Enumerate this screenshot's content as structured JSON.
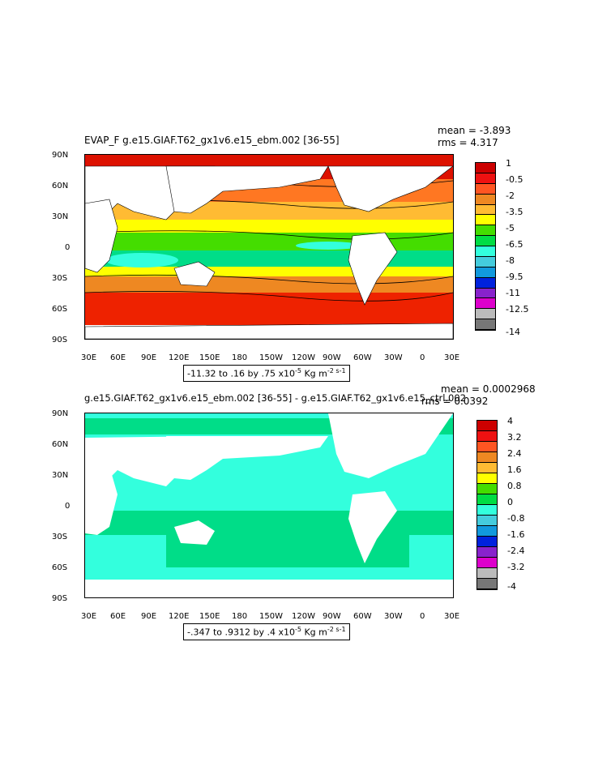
{
  "panel1": {
    "title": "EVAP_F g.e15.GIAF.T62_gx1v6.e15_ebm.002 [36-55]",
    "mean_label": "mean = -3.893",
    "rms_label": "rms = 4.317",
    "range_text": "-11.32 to .16 by .75 x10",
    "range_exp": "-5",
    "range_units": " Kg m",
    "range_units_exp": "-2 s-1",
    "colorbar": {
      "labels": [
        "1",
        "-0.5",
        "-2",
        "-3.5",
        "-5",
        "-6.5",
        "-8",
        "-9.5",
        "-11",
        "-12.5",
        "-14"
      ],
      "colors": [
        "#cc0000",
        "#ee1111",
        "#ff5522",
        "#ee8822",
        "#ffbb33",
        "#ffff00",
        "#44dd00",
        "#00dd44",
        "#33ffdd",
        "#44ccdd",
        "#1199dd",
        "#0022dd",
        "#8822cc",
        "#dd00cc",
        "#bbbbbb",
        "#777777"
      ]
    }
  },
  "panel2": {
    "title": "g.e15.GIAF.T62_gx1v6.e15_ebm.002 [36-55] - g.e15.GIAF.T62_gx1v6.e15_ctrl.002",
    "mean_label": "mean = 0.0002968",
    "rms_label": "rms = 0.0392",
    "range_text": "-.347 to .9312 by .4 x10",
    "range_exp": "-5",
    "range_units": " Kg m",
    "range_units_exp": "-2 s-1",
    "colorbar": {
      "labels": [
        "4",
        "3.2",
        "2.4",
        "1.6",
        "0.8",
        "0",
        "-0.8",
        "-1.6",
        "-2.4",
        "-3.2",
        "-4"
      ],
      "colors": [
        "#cc0000",
        "#ee1111",
        "#ff5522",
        "#ee8822",
        "#ffbb33",
        "#ffff00",
        "#44dd00",
        "#00dd44",
        "#33ffdd",
        "#44ccdd",
        "#1199dd",
        "#0022dd",
        "#8822cc",
        "#dd00cc",
        "#bbbbbb",
        "#777777"
      ]
    }
  },
  "axes": {
    "lat_labels": [
      "90N",
      "60N",
      "30N",
      "0",
      "30S",
      "60S",
      "90S"
    ],
    "lon_labels": [
      "30E",
      "60E",
      "90E",
      "120E",
      "150E",
      "180",
      "150W",
      "120W",
      "90W",
      "60W",
      "30W",
      "0",
      "30E"
    ]
  }
}
